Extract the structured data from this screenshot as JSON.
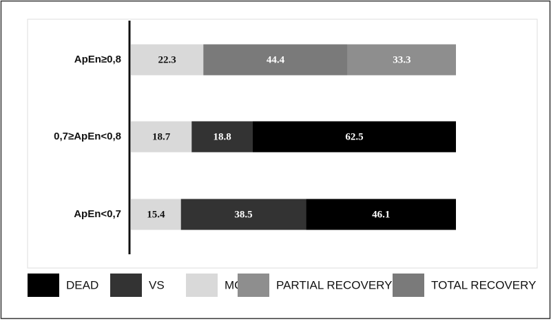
{
  "chart_data": {
    "type": "stacked-bar-horizontal",
    "categories": [
      "ApEn≥0,8",
      "0,7≥ApEn<0,8",
      "ApEn<0,7"
    ],
    "series": [
      {
        "name": "DEAD",
        "color": "#000000",
        "values": [
          null,
          62.5,
          46.1
        ]
      },
      {
        "name": "VS",
        "color": "#333333",
        "values": [
          null,
          18.8,
          38.5
        ]
      },
      {
        "name": "MCS",
        "color": "#d9d9d9",
        "values": [
          22.3,
          18.7,
          15.4
        ]
      },
      {
        "name": "PARTIAL RECOVERY",
        "color": "#8e8e8e",
        "values": [
          33.3,
          null,
          null
        ]
      },
      {
        "name": "TOTAL RECOVERY",
        "color": "#7a7a7a",
        "values": [
          44.4,
          null,
          null
        ]
      }
    ]
  }
}
